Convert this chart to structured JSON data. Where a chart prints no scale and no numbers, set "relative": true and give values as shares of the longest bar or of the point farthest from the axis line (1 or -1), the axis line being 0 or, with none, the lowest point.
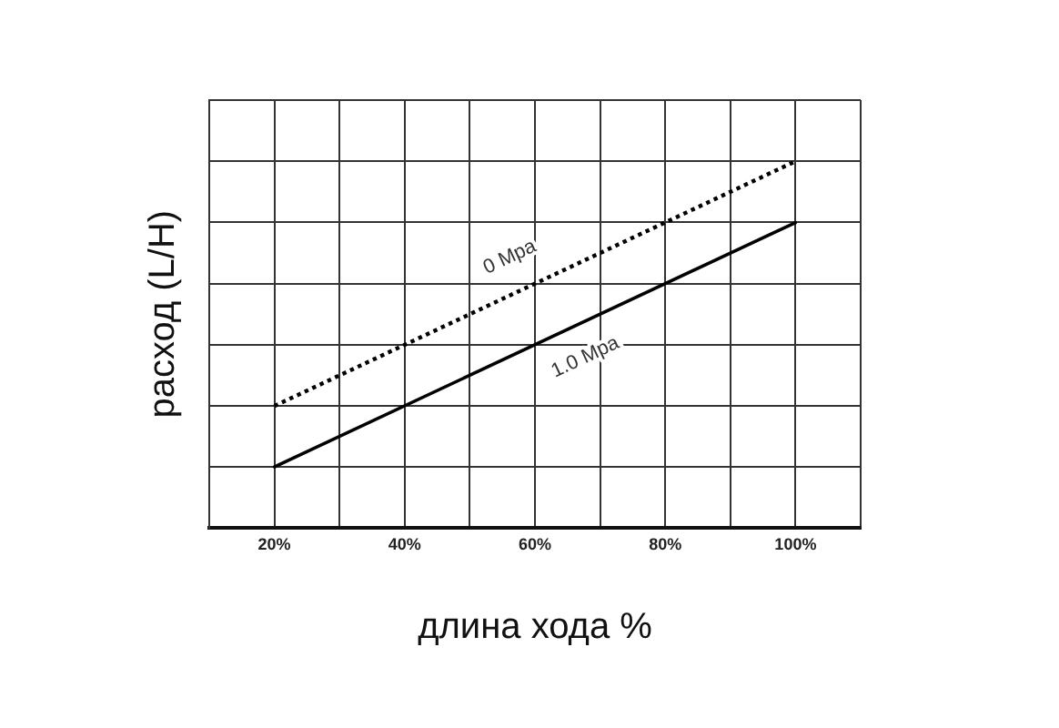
{
  "chart_data": {
    "type": "line",
    "xlabel": "длина хода %",
    "ylabel": "расход (L/H)",
    "x": [
      20,
      100
    ],
    "xlim": [
      10,
      110
    ],
    "xticks": [
      {
        "value": 10,
        "label": null
      },
      {
        "value": 20,
        "label": "20%"
      },
      {
        "value": 30,
        "label": null
      },
      {
        "value": 40,
        "label": "40%"
      },
      {
        "value": 50,
        "label": null
      },
      {
        "value": 60,
        "label": "60%"
      },
      {
        "value": 70,
        "label": null
      },
      {
        "value": 80,
        "label": "80%"
      },
      {
        "value": 90,
        "label": null
      },
      {
        "value": 100,
        "label": "100%"
      },
      {
        "value": 110,
        "label": null
      }
    ],
    "relative": true,
    "series": [
      {
        "name": "0 Mpa",
        "color": "#000000",
        "values": [
          0.333,
          1
        ],
        "line_style": "dotted"
      },
      {
        "name": "1.0 Mpa",
        "color": "#000000",
        "values": [
          0.167,
          0.833
        ],
        "line_style": "solid"
      }
    ],
    "grid": true,
    "legend": false,
    "tick_labels": "x",
    "marker": "none"
  }
}
